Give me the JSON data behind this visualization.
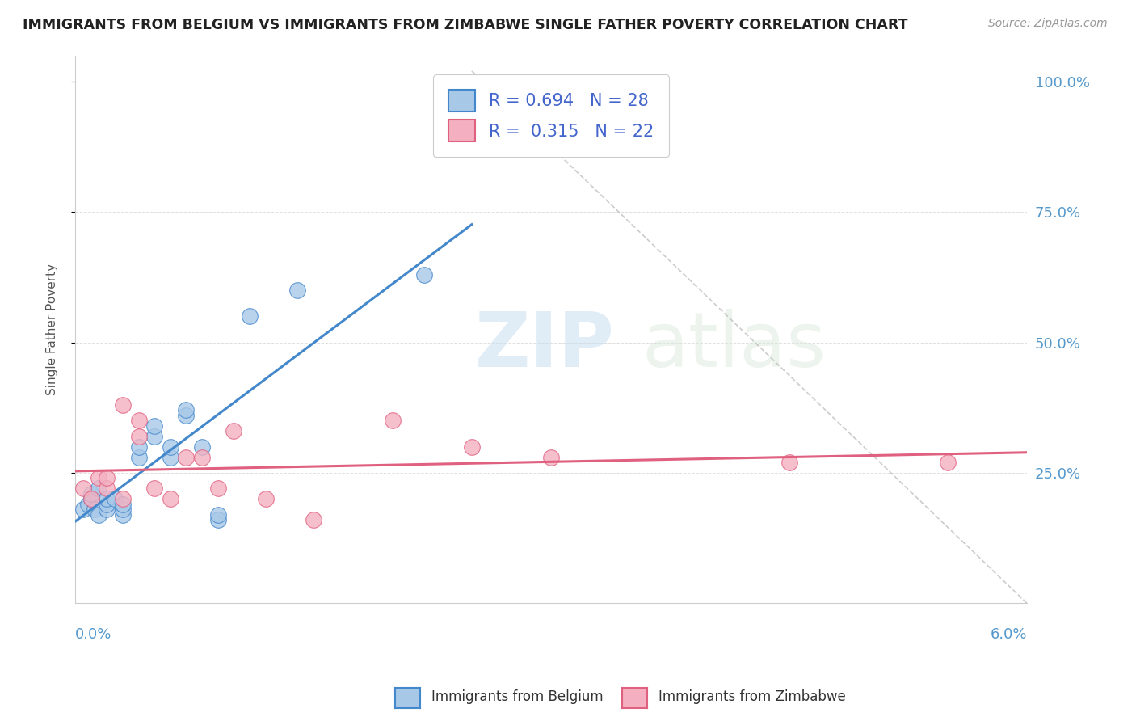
{
  "title": "IMMIGRANTS FROM BELGIUM VS IMMIGRANTS FROM ZIMBABWE SINGLE FATHER POVERTY CORRELATION CHART",
  "source": "Source: ZipAtlas.com",
  "ylabel": "Single Father Poverty",
  "legend_label1": "Immigrants from Belgium",
  "legend_label2": "Immigrants from Zimbabwe",
  "r1": "0.694",
  "n1": "28",
  "r2": "0.315",
  "n2": "22",
  "color_belgium": "#a8c8e8",
  "color_zimbabwe": "#f4b0c0",
  "color_line_belgium": "#4488cc",
  "color_line_zimbabwe": "#e06080",
  "color_dashed": "#bbbbbb",
  "watermark_zip": "ZIP",
  "watermark_atlas": "atlas",
  "belgium_x": [
    0.0005,
    0.0008,
    0.001,
    0.001,
    0.0012,
    0.0015,
    0.0015,
    0.002,
    0.002,
    0.002,
    0.0025,
    0.003,
    0.003,
    0.003,
    0.004,
    0.004,
    0.005,
    0.005,
    0.006,
    0.006,
    0.007,
    0.007,
    0.008,
    0.009,
    0.009,
    0.011,
    0.014,
    0.022
  ],
  "belgium_y": [
    0.18,
    0.19,
    0.2,
    0.21,
    0.18,
    0.17,
    0.22,
    0.18,
    0.19,
    0.2,
    0.2,
    0.17,
    0.18,
    0.19,
    0.28,
    0.3,
    0.32,
    0.34,
    0.28,
    0.3,
    0.36,
    0.37,
    0.3,
    0.16,
    0.17,
    0.55,
    0.6,
    0.63
  ],
  "zimbabwe_x": [
    0.0005,
    0.001,
    0.0015,
    0.002,
    0.002,
    0.003,
    0.003,
    0.004,
    0.004,
    0.005,
    0.006,
    0.007,
    0.008,
    0.009,
    0.01,
    0.012,
    0.015,
    0.02,
    0.025,
    0.03,
    0.045,
    0.055
  ],
  "zimbabwe_y": [
    0.22,
    0.2,
    0.24,
    0.22,
    0.24,
    0.2,
    0.38,
    0.32,
    0.35,
    0.22,
    0.2,
    0.28,
    0.28,
    0.22,
    0.33,
    0.2,
    0.16,
    0.35,
    0.3,
    0.28,
    0.27,
    0.27
  ],
  "xlim": [
    0.0,
    0.06
  ],
  "ylim": [
    0.0,
    1.05
  ],
  "yticks": [
    0.25,
    0.5,
    0.75,
    1.0
  ],
  "ytick_labels": [
    "25.0%",
    "50.0%",
    "75.0%",
    "100.0%"
  ],
  "xtick_labels_color": "#5599cc",
  "ytick_labels_color": "#5599cc",
  "background_color": "#ffffff",
  "grid_color": "#e0e0e0",
  "title_color": "#222222",
  "source_color": "#999999",
  "legend_text_color": "#4466cc",
  "legend_border_color": "#cccccc"
}
